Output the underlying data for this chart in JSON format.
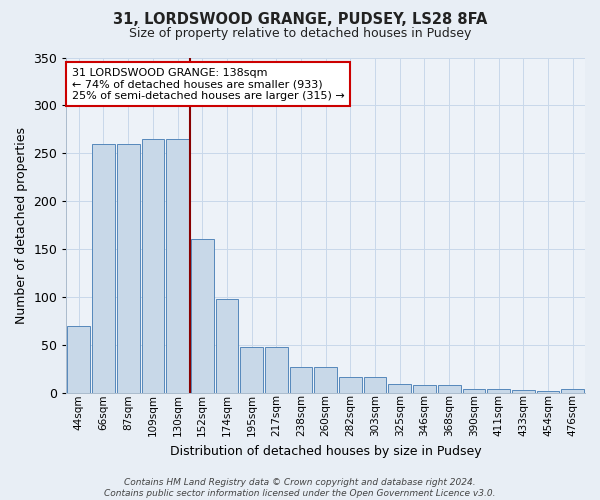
{
  "title": "31, LORDSWOOD GRANGE, PUDSEY, LS28 8FA",
  "subtitle": "Size of property relative to detached houses in Pudsey",
  "xlabel": "Distribution of detached houses by size in Pudsey",
  "ylabel": "Number of detached properties",
  "categories": [
    "44sqm",
    "66sqm",
    "87sqm",
    "109sqm",
    "130sqm",
    "152sqm",
    "174sqm",
    "195sqm",
    "217sqm",
    "238sqm",
    "260sqm",
    "282sqm",
    "303sqm",
    "325sqm",
    "346sqm",
    "368sqm",
    "390sqm",
    "411sqm",
    "433sqm",
    "454sqm",
    "476sqm"
  ],
  "values": [
    70,
    260,
    260,
    265,
    265,
    160,
    98,
    48,
    48,
    27,
    27,
    16,
    16,
    9,
    8,
    8,
    4,
    4,
    3,
    2,
    4
  ],
  "bar_color": "#c8d8e8",
  "bar_edge_color": "#5588bb",
  "grid_color": "#c8d8ea",
  "vline_color": "#880000",
  "annotation_text": "31 LORDSWOOD GRANGE: 138sqm\n← 74% of detached houses are smaller (933)\n25% of semi-detached houses are larger (315) →",
  "annotation_box_color": "#ffffff",
  "annotation_box_edge": "#cc0000",
  "ylim": [
    0,
    350
  ],
  "yticks": [
    0,
    50,
    100,
    150,
    200,
    250,
    300,
    350
  ],
  "footer": "Contains HM Land Registry data © Crown copyright and database right 2024.\nContains public sector information licensed under the Open Government Licence v3.0.",
  "bg_color": "#e8eef5",
  "plot_bg_color": "#edf2f8"
}
